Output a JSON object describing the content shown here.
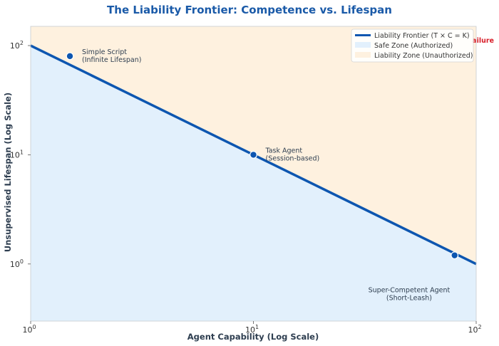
{
  "chart_data": {
    "type": "line",
    "title": "The Liability Frontier: Competence vs. Lifespan",
    "xlabel": "Agent Capability (Log Scale)",
    "ylabel": "Unsupervised Lifespan (Log Scale)",
    "x_scale": "log",
    "y_scale": "log",
    "xlim": [
      1,
      100
    ],
    "ylim": [
      0.3,
      150
    ],
    "grid": false,
    "legend_position": "top-right",
    "x_ticks": [
      {
        "value": 1,
        "base": "10",
        "exp": "0"
      },
      {
        "value": 10,
        "base": "10",
        "exp": "1"
      },
      {
        "value": 100,
        "base": "10",
        "exp": "2"
      }
    ],
    "y_ticks": [
      {
        "value": 1,
        "base": "10",
        "exp": "0"
      },
      {
        "value": 10,
        "base": "10",
        "exp": "1"
      },
      {
        "value": 100,
        "base": "10",
        "exp": "2"
      }
    ],
    "series": [
      {
        "name": "Liability Frontier (T × C = K)",
        "color": "#0d56b0",
        "x": [
          1,
          100
        ],
        "y": [
          100,
          1
        ]
      }
    ],
    "regions": [
      {
        "name": "Safe Zone (Authorized)",
        "color": "#e2f0fc",
        "position": "below-frontier"
      },
      {
        "name": "Liability Zone (Unauthorized)",
        "color": "#fef1df",
        "position": "above-frontier"
      }
    ],
    "points": [
      {
        "x": 1.5,
        "y": 80,
        "label_lines": [
          "Simple Script",
          "(Infinite Lifespan)"
        ],
        "label_anchor": "start"
      },
      {
        "x": 10,
        "y": 10,
        "label_lines": [
          "Task Agent",
          "(Session-based)"
        ],
        "label_anchor": "start"
      },
      {
        "x": 80,
        "y": 1.2,
        "label_lines": [],
        "label_anchor": "start"
      }
    ],
    "annotations": [
      {
        "x": 50,
        "y": 0.55,
        "lines": [
          "Super-Competent Agent",
          "(Short-Leash)"
        ],
        "color": "#2e3e50",
        "anchor": "middle"
      },
      {
        "partial_text": "ailure",
        "color": "#d81f2a",
        "position": "top-right-occluded"
      }
    ],
    "colors": {
      "frontier": "#0d56b0",
      "points": "#0d56b0",
      "safe_zone": "#e2f0fc",
      "liability_zone": "#fef1df",
      "text": "#2e3e50",
      "title": "#1a5aa8",
      "warning": "#d81f2a"
    }
  }
}
